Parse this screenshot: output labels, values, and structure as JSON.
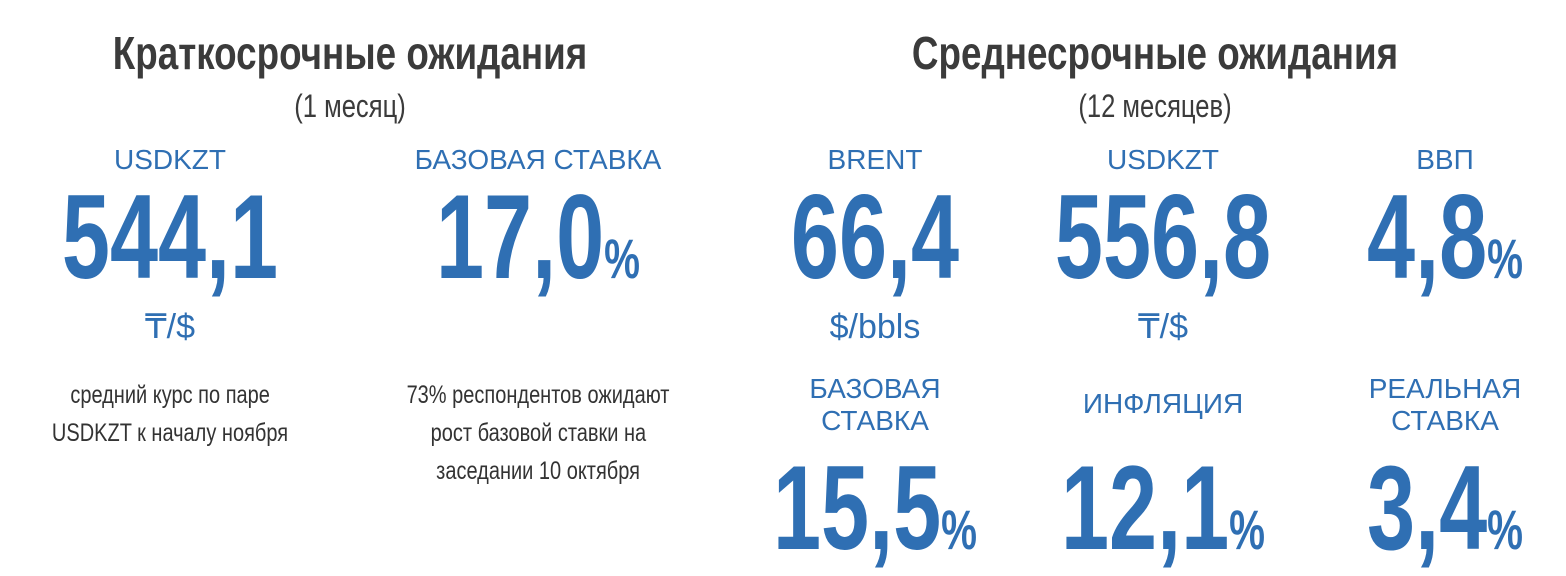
{
  "short_term": {
    "title": "Краткосрочные ожидания",
    "subtitle": "(1 месяц)",
    "items": [
      {
        "label": [
          "USDKZT"
        ],
        "value": "544,1",
        "unit": "₸/$",
        "note": [
          "средний курс по паре",
          "USDKZT к началу ноября"
        ]
      },
      {
        "label": [
          "БАЗОВАЯ СТАВКА"
        ],
        "value": "17,0",
        "unit": "%",
        "note": [
          "73% респондентов ожидают",
          "рост базовой ставки на",
          "заседании 10 октября"
        ]
      }
    ]
  },
  "medium_term": {
    "title": "Среднесрочные ожидания",
    "subtitle": "(12 месяцев)",
    "items": [
      {
        "label": [
          "BRENT"
        ],
        "value": "66,4",
        "unit": "$/bbls"
      },
      {
        "label": [
          "USDKZT"
        ],
        "value": "556,8",
        "unit": "₸/$"
      },
      {
        "label": [
          "ВВП"
        ],
        "value": "4,8",
        "unit": "%"
      },
      {
        "label": [
          "БАЗОВАЯ",
          "СТАВКА"
        ],
        "value": "15,5",
        "unit": "%"
      },
      {
        "label": [
          "ИНФЛЯЦИЯ"
        ],
        "value": "12,1",
        "unit": "%"
      },
      {
        "label": [
          "РЕАЛЬНАЯ",
          "СТАВКА"
        ],
        "value": "3,4",
        "unit": "%"
      }
    ]
  }
}
